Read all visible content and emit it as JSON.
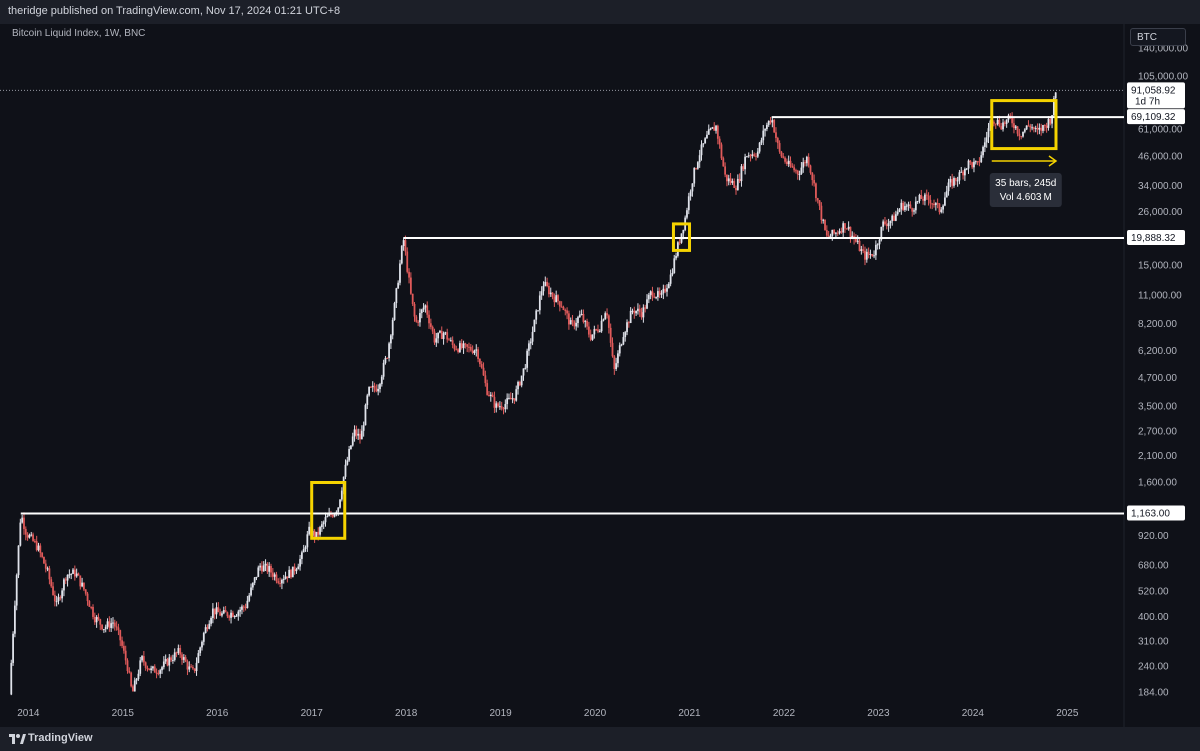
{
  "header": {
    "published_text": "theridge published on TradingView.com, Nov 17, 2024 01:21 UTC+8"
  },
  "footer": {
    "brand": "TradingView"
  },
  "chart_data": {
    "type": "candlestick",
    "title": "Bitcoin Liquid Index, 1W, BNC",
    "symbol": "BTC",
    "scale": "log",
    "ylim": [
      170,
      150000
    ],
    "xlim": [
      2013.7,
      2025.6
    ],
    "y_ticks": [
      "140,000.00",
      "105,000.00",
      "61,000.00",
      "46,000.00",
      "34,000.00",
      "26,000.00",
      "15,000.00",
      "11,000.00",
      "8,200.00",
      "6,200.00",
      "4,700.00",
      "3,500.00",
      "2,700.00",
      "2,100.00",
      "1,600.00",
      "920.00",
      "680.00",
      "520.00",
      "400.00",
      "310.00",
      "240.00",
      "184.00"
    ],
    "x_ticks": [
      "2014",
      "2015",
      "2016",
      "2017",
      "2018",
      "2019",
      "2020",
      "2021",
      "2022",
      "2023",
      "2024",
      "2025"
    ],
    "price_path": [
      [
        2013.8,
        180
      ],
      [
        2013.85,
        420
      ],
      [
        2013.92,
        1163
      ],
      [
        2013.98,
        950
      ],
      [
        2014.1,
        820
      ],
      [
        2014.2,
        640
      ],
      [
        2014.3,
        450
      ],
      [
        2014.4,
        620
      ],
      [
        2014.5,
        630
      ],
      [
        2014.6,
        520
      ],
      [
        2014.7,
        400
      ],
      [
        2014.8,
        360
      ],
      [
        2014.9,
        380
      ],
      [
        2014.97,
        320
      ],
      [
        2015.05,
        240
      ],
      [
        2015.1,
        180
      ],
      [
        2015.2,
        260
      ],
      [
        2015.3,
        230
      ],
      [
        2015.4,
        235
      ],
      [
        2015.5,
        260
      ],
      [
        2015.6,
        280
      ],
      [
        2015.7,
        235
      ],
      [
        2015.75,
        225
      ],
      [
        2015.85,
        330
      ],
      [
        2015.95,
        430
      ],
      [
        2016.05,
        410
      ],
      [
        2016.2,
        420
      ],
      [
        2016.3,
        450
      ],
      [
        2016.45,
        680
      ],
      [
        2016.55,
        650
      ],
      [
        2016.65,
        590
      ],
      [
        2016.8,
        640
      ],
      [
        2016.9,
        750
      ],
      [
        2016.97,
        970
      ],
      [
        2017.05,
        920
      ],
      [
        2017.15,
        1100
      ],
      [
        2017.22,
        1163
      ],
      [
        2017.28,
        1250
      ],
      [
        2017.35,
        1800
      ],
      [
        2017.45,
        2700
      ],
      [
        2017.52,
        2500
      ],
      [
        2017.6,
        4100
      ],
      [
        2017.7,
        4300
      ],
      [
        2017.8,
        6000
      ],
      [
        2017.88,
        10000
      ],
      [
        2017.97,
        19888
      ],
      [
        2018.05,
        11000
      ],
      [
        2018.1,
        8200
      ],
      [
        2018.2,
        10000
      ],
      [
        2018.3,
        7000
      ],
      [
        2018.4,
        7500
      ],
      [
        2018.5,
        6500
      ],
      [
        2018.6,
        6400
      ],
      [
        2018.75,
        6300
      ],
      [
        2018.85,
        4200
      ],
      [
        2018.95,
        3500
      ],
      [
        2019.05,
        3600
      ],
      [
        2019.15,
        3900
      ],
      [
        2019.25,
        5200
      ],
      [
        2019.35,
        8000
      ],
      [
        2019.45,
        12500
      ],
      [
        2019.55,
        11000
      ],
      [
        2019.65,
        10000
      ],
      [
        2019.75,
        8000
      ],
      [
        2019.85,
        9000
      ],
      [
        2019.95,
        7200
      ],
      [
        2020.05,
        8000
      ],
      [
        2020.12,
        9800
      ],
      [
        2020.2,
        5000
      ],
      [
        2020.3,
        7500
      ],
      [
        2020.4,
        9500
      ],
      [
        2020.5,
        9200
      ],
      [
        2020.6,
        11500
      ],
      [
        2020.7,
        10700
      ],
      [
        2020.8,
        13500
      ],
      [
        2020.88,
        18500
      ],
      [
        2020.95,
        24000
      ],
      [
        2021.02,
        35000
      ],
      [
        2021.1,
        47000
      ],
      [
        2021.2,
        58000
      ],
      [
        2021.28,
        63000
      ],
      [
        2021.38,
        37000
      ],
      [
        2021.5,
        34000
      ],
      [
        2021.6,
        47000
      ],
      [
        2021.72,
        48000
      ],
      [
        2021.8,
        62000
      ],
      [
        2021.87,
        69109
      ],
      [
        2021.95,
        48000
      ],
      [
        2022.05,
        42000
      ],
      [
        2022.15,
        39000
      ],
      [
        2022.25,
        46000
      ],
      [
        2022.35,
        30000
      ],
      [
        2022.45,
        20000
      ],
      [
        2022.55,
        21000
      ],
      [
        2022.65,
        23000
      ],
      [
        2022.75,
        19500
      ],
      [
        2022.85,
        16500
      ],
      [
        2022.95,
        17000
      ],
      [
        2023.05,
        23000
      ],
      [
        2023.15,
        24000
      ],
      [
        2023.25,
        28000
      ],
      [
        2023.35,
        27000
      ],
      [
        2023.45,
        30000
      ],
      [
        2023.55,
        29500
      ],
      [
        2023.65,
        26500
      ],
      [
        2023.75,
        34500
      ],
      [
        2023.85,
        37500
      ],
      [
        2023.95,
        43000
      ],
      [
        2024.05,
        42000
      ],
      [
        2024.12,
        52000
      ],
      [
        2024.2,
        69000
      ],
      [
        2024.3,
        64000
      ],
      [
        2024.4,
        68000
      ],
      [
        2024.5,
        58000
      ],
      [
        2024.6,
        64000
      ],
      [
        2024.68,
        59000
      ],
      [
        2024.76,
        63000
      ],
      [
        2024.83,
        69000
      ],
      [
        2024.88,
        91058
      ]
    ],
    "horizontal_levels": [
      {
        "value": 69109.32,
        "x_start": 2021.87,
        "label": "69,109.32"
      },
      {
        "value": 19888.32,
        "x_start": 2017.97,
        "label": "19,888.32"
      },
      {
        "value": 1163.0,
        "x_start": 2013.92,
        "label": "1,163.00"
      }
    ],
    "last_price": {
      "value": 91058.92,
      "label": "91,058.92",
      "countdown": "1d 7h"
    },
    "highlight_boxes": [
      {
        "x": [
          2017.0,
          2017.35
        ],
        "y": [
          900,
          1600
        ]
      },
      {
        "x": [
          2020.83,
          2021.0
        ],
        "y": [
          17500,
          23000
        ]
      },
      {
        "x": [
          2024.2,
          2024.88
        ],
        "y": [
          50000,
          82000
        ]
      }
    ],
    "measure": {
      "x_from": 2024.2,
      "x_to": 2024.88,
      "y": 44000,
      "label_line1": "35 bars, 245d",
      "label_line2": "Vol 4.603 M"
    },
    "colors": {
      "up": "#e0e3eb",
      "down": "#e05a5a",
      "level": "#ffffff",
      "box": "#f5d300",
      "text": "#b2b5be",
      "grid": "#0f1118"
    }
  }
}
